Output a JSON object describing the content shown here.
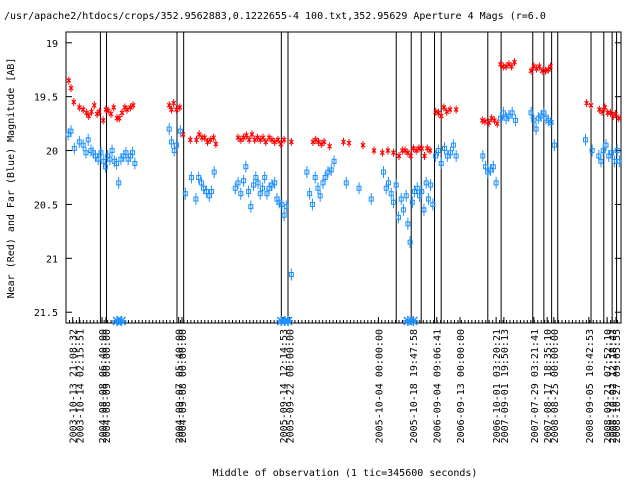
{
  "chart_data": {
    "type": "scatter",
    "title": "/usr/apache2/htdocs/crops/352.9562883,0.1222655-4 100.txt,352.95629    Aperture 4 Mags (r=6.0",
    "xlabel": "Middle of observation (1 tic=345600 seconds)",
    "ylabel": "Near (Red) and Far (Blue) Magnitude [AB]",
    "y_inverted": true,
    "ylim": [
      21.6,
      18.9
    ],
    "yticks": [
      "19",
      "19.5",
      "20",
      "20.5",
      "21",
      "21.5"
    ],
    "xlim": [
      0,
      100
    ],
    "x_tick_labels": [
      {
        "x": 1.2,
        "label": "2003-10-13 21:08:32"
      },
      {
        "x": 2.4,
        "label": "2003-10-14 02:15:51"
      },
      {
        "x": 6.5,
        "label": "2004-08-08 06:40:00"
      },
      {
        "x": 7.2,
        "label": "2004-08-09 00:00:00"
      },
      {
        "x": 20.3,
        "label": "2004-09-07 05:40:00"
      },
      {
        "x": 20.9,
        "label": "2004-09-08 00:00:00"
      },
      {
        "x": 39.1,
        "label": "2005-09-14 12:14:53"
      },
      {
        "x": 40.3,
        "label": "2005-09-22 00:00:00"
      },
      {
        "x": 56.3,
        "label": "2005-10-04 00:00:00"
      },
      {
        "x": 62.5,
        "label": "2005-10-18 19:47:58"
      },
      {
        "x": 66.8,
        "label": "2006-09-04 09:06:41"
      },
      {
        "x": 71.0,
        "label": "2006-09-13 00:00:00"
      },
      {
        "x": 77.5,
        "label": "2006-10-01 03:20:21"
      },
      {
        "x": 78.9,
        "label": "2007-09-01 19:50:13"
      },
      {
        "x": 84.3,
        "label": "2007-07-29 03:21:41"
      },
      {
        "x": 86.7,
        "label": "2007-08-17 18:35:10"
      },
      {
        "x": 87.9,
        "label": "2008-08-25 00:00:00"
      },
      {
        "x": 94.2,
        "label": "2008-09-05 10:42:53"
      },
      {
        "x": 97.5,
        "label": "2008-09-21 07:52:10"
      },
      {
        "x": 98.4,
        "label": "2008-10-02 12:18:43"
      },
      {
        "x": 99.1,
        "label": "2008-10-27 09:05:55"
      }
    ],
    "vertical_lines": [
      6.2,
      7.3,
      20.0,
      21.2,
      38.8,
      40.0,
      59.5,
      62.2,
      64.0,
      66.4,
      67.6,
      76.0,
      78.4,
      84.1,
      86.1,
      87.5,
      88.6,
      94.6,
      96.9,
      98.4,
      99.2
    ],
    "series": [
      {
        "name": "Near (Red)",
        "color": "#ff0000",
        "marker": "x",
        "points": [
          [
            0.5,
            19.35
          ],
          [
            0.9,
            19.42
          ],
          [
            1.4,
            19.55
          ],
          [
            2.4,
            19.6
          ],
          [
            3.1,
            19.62
          ],
          [
            3.7,
            19.65
          ],
          [
            4.1,
            19.68
          ],
          [
            4.6,
            19.64
          ],
          [
            5.1,
            19.58
          ],
          [
            5.6,
            19.66
          ],
          [
            6.0,
            19.64
          ],
          [
            6.7,
            19.72
          ],
          [
            7.2,
            19.62
          ],
          [
            7.6,
            19.63
          ],
          [
            8.1,
            19.66
          ],
          [
            8.6,
            19.6
          ],
          [
            9.2,
            19.7
          ],
          [
            9.6,
            19.7
          ],
          [
            10.1,
            19.65
          ],
          [
            10.6,
            19.6
          ],
          [
            11.0,
            19.62
          ],
          [
            11.6,
            19.6
          ],
          [
            12.1,
            19.58
          ],
          [
            18.6,
            19.58
          ],
          [
            19.0,
            19.62
          ],
          [
            19.4,
            19.56
          ],
          [
            19.9,
            19.62
          ],
          [
            20.5,
            19.6
          ],
          [
            21.1,
            19.85
          ],
          [
            22.4,
            19.9
          ],
          [
            23.5,
            19.9
          ],
          [
            24.0,
            19.85
          ],
          [
            24.5,
            19.88
          ],
          [
            25.0,
            19.88
          ],
          [
            25.5,
            19.92
          ],
          [
            26.0,
            19.9
          ],
          [
            26.6,
            19.88
          ],
          [
            27.0,
            19.94
          ],
          [
            31.0,
            19.88
          ],
          [
            31.5,
            19.9
          ],
          [
            32.0,
            19.88
          ],
          [
            32.5,
            19.86
          ],
          [
            33.0,
            19.9
          ],
          [
            33.5,
            19.85
          ],
          [
            34.0,
            19.9
          ],
          [
            34.5,
            19.88
          ],
          [
            35.0,
            19.9
          ],
          [
            35.5,
            19.88
          ],
          [
            36.0,
            19.92
          ],
          [
            36.6,
            19.88
          ],
          [
            37.1,
            19.9
          ],
          [
            37.6,
            19.92
          ],
          [
            38.2,
            19.9
          ],
          [
            38.7,
            19.94
          ],
          [
            39.3,
            19.9
          ],
          [
            40.6,
            19.92
          ],
          [
            44.5,
            19.92
          ],
          [
            45.0,
            19.9
          ],
          [
            45.5,
            19.92
          ],
          [
            46.0,
            19.94
          ],
          [
            46.5,
            19.92
          ],
          [
            47.5,
            19.96
          ],
          [
            50.0,
            19.92
          ],
          [
            51.0,
            19.93
          ],
          [
            53.5,
            19.95
          ],
          [
            55.5,
            20.0
          ],
          [
            57.0,
            20.02
          ],
          [
            58.0,
            20.0
          ],
          [
            59.0,
            20.02
          ],
          [
            60.0,
            20.05
          ],
          [
            60.6,
            20.0
          ],
          [
            61.1,
            20.0
          ],
          [
            61.6,
            20.02
          ],
          [
            62.1,
            20.05
          ],
          [
            62.6,
            19.98
          ],
          [
            63.1,
            20.0
          ],
          [
            63.6,
            19.98
          ],
          [
            64.1,
            19.98
          ],
          [
            64.6,
            20.05
          ],
          [
            65.1,
            19.98
          ],
          [
            65.6,
            20.0
          ],
          [
            66.6,
            19.64
          ],
          [
            67.1,
            19.65
          ],
          [
            67.6,
            19.68
          ],
          [
            68.1,
            19.6
          ],
          [
            68.6,
            19.64
          ],
          [
            69.2,
            19.62
          ],
          [
            70.3,
            19.62
          ],
          [
            75.0,
            19.72
          ],
          [
            75.5,
            19.73
          ],
          [
            76.2,
            19.74
          ],
          [
            76.7,
            19.7
          ],
          [
            77.2,
            19.72
          ],
          [
            77.7,
            19.75
          ],
          [
            78.3,
            19.2
          ],
          [
            78.8,
            19.22
          ],
          [
            79.3,
            19.22
          ],
          [
            79.8,
            19.2
          ],
          [
            80.3,
            19.22
          ],
          [
            80.8,
            19.18
          ],
          [
            83.8,
            19.26
          ],
          [
            84.3,
            19.22
          ],
          [
            84.8,
            19.24
          ],
          [
            85.3,
            19.22
          ],
          [
            85.8,
            19.26
          ],
          [
            86.4,
            19.26
          ],
          [
            86.9,
            19.25
          ],
          [
            87.3,
            19.22
          ],
          [
            93.8,
            19.56
          ],
          [
            94.6,
            19.58
          ],
          [
            96.1,
            19.62
          ],
          [
            96.6,
            19.64
          ],
          [
            97.1,
            19.6
          ],
          [
            97.6,
            19.65
          ],
          [
            98.1,
            19.65
          ],
          [
            98.6,
            19.68
          ],
          [
            99.0,
            19.66
          ],
          [
            99.6,
            19.7
          ]
        ]
      },
      {
        "name": "Far (Blue)",
        "color": "#1e90ff",
        "marker": "square",
        "points": [
          [
            0.4,
            19.85
          ],
          [
            0.9,
            19.82
          ],
          [
            1.5,
            19.98
          ],
          [
            2.4,
            19.92
          ],
          [
            3.1,
            19.95
          ],
          [
            3.6,
            20.02
          ],
          [
            4.0,
            19.9
          ],
          [
            4.5,
            20.0
          ],
          [
            4.9,
            20.02
          ],
          [
            5.3,
            20.05
          ],
          [
            5.8,
            20.08
          ],
          [
            6.3,
            20.02
          ],
          [
            6.8,
            20.1
          ],
          [
            7.1,
            20.15
          ],
          [
            7.5,
            20.05
          ],
          [
            7.9,
            20.08
          ],
          [
            8.3,
            20.0
          ],
          [
            8.7,
            20.1
          ],
          [
            9.1,
            20.12
          ],
          [
            9.5,
            20.3
          ],
          [
            9.9,
            20.08
          ],
          [
            10.4,
            20.05
          ],
          [
            10.8,
            20.02
          ],
          [
            11.2,
            20.08
          ],
          [
            11.6,
            20.05
          ],
          [
            12.0,
            20.02
          ],
          [
            12.4,
            20.12
          ],
          [
            18.6,
            19.8
          ],
          [
            19.0,
            19.92
          ],
          [
            19.5,
            20.0
          ],
          [
            19.9,
            19.95
          ],
          [
            20.6,
            19.82
          ],
          [
            21.5,
            20.4
          ],
          [
            22.6,
            20.25
          ],
          [
            23.4,
            20.45
          ],
          [
            23.9,
            20.25
          ],
          [
            24.4,
            20.3
          ],
          [
            24.8,
            20.35
          ],
          [
            25.3,
            20.38
          ],
          [
            25.8,
            20.42
          ],
          [
            26.2,
            20.38
          ],
          [
            26.7,
            20.2
          ],
          [
            30.5,
            20.35
          ],
          [
            31.0,
            20.3
          ],
          [
            31.5,
            20.4
          ],
          [
            32.0,
            20.28
          ],
          [
            32.4,
            20.15
          ],
          [
            32.9,
            20.38
          ],
          [
            33.3,
            20.52
          ],
          [
            33.8,
            20.32
          ],
          [
            34.2,
            20.25
          ],
          [
            34.6,
            20.3
          ],
          [
            35.0,
            20.4
          ],
          [
            35.4,
            20.35
          ],
          [
            35.8,
            20.25
          ],
          [
            36.2,
            20.4
          ],
          [
            36.6,
            20.35
          ],
          [
            37.1,
            20.32
          ],
          [
            37.6,
            20.3
          ],
          [
            38.0,
            20.45
          ],
          [
            38.4,
            20.48
          ],
          [
            38.9,
            20.5
          ],
          [
            39.3,
            20.6
          ],
          [
            39.7,
            20.52
          ],
          [
            40.6,
            21.15
          ],
          [
            43.4,
            20.2
          ],
          [
            43.9,
            20.4
          ],
          [
            44.4,
            20.5
          ],
          [
            44.9,
            20.25
          ],
          [
            45.4,
            20.35
          ],
          [
            45.8,
            20.42
          ],
          [
            46.3,
            20.3
          ],
          [
            46.7,
            20.25
          ],
          [
            47.2,
            20.2
          ],
          [
            47.8,
            20.18
          ],
          [
            48.3,
            20.1
          ],
          [
            50.5,
            20.3
          ],
          [
            52.8,
            20.35
          ],
          [
            55.0,
            20.45
          ],
          [
            57.2,
            20.2
          ],
          [
            57.7,
            20.35
          ],
          [
            58.1,
            20.3
          ],
          [
            58.6,
            20.4
          ],
          [
            59.0,
            20.48
          ],
          [
            59.5,
            20.32
          ],
          [
            59.9,
            20.62
          ],
          [
            60.4,
            20.45
          ],
          [
            60.8,
            20.55
          ],
          [
            61.3,
            20.42
          ],
          [
            61.6,
            20.68
          ],
          [
            62.0,
            20.85
          ],
          [
            62.4,
            20.48
          ],
          [
            62.8,
            20.38
          ],
          [
            63.3,
            20.35
          ],
          [
            63.7,
            20.42
          ],
          [
            64.1,
            20.38
          ],
          [
            64.5,
            20.55
          ],
          [
            64.9,
            20.3
          ],
          [
            65.3,
            20.45
          ],
          [
            65.7,
            20.32
          ],
          [
            66.1,
            20.5
          ],
          [
            66.6,
            20.05
          ],
          [
            67.1,
            20.0
          ],
          [
            67.6,
            20.12
          ],
          [
            68.2,
            19.98
          ],
          [
            68.7,
            20.05
          ],
          [
            69.3,
            20.02
          ],
          [
            69.8,
            19.95
          ],
          [
            70.3,
            20.05
          ],
          [
            75.1,
            20.05
          ],
          [
            75.6,
            20.15
          ],
          [
            76.0,
            20.2
          ],
          [
            76.5,
            20.18
          ],
          [
            77.0,
            20.15
          ],
          [
            77.5,
            20.3
          ],
          [
            78.3,
            19.7
          ],
          [
            78.8,
            19.65
          ],
          [
            79.3,
            19.7
          ],
          [
            79.8,
            19.68
          ],
          [
            80.4,
            19.65
          ],
          [
            81.0,
            19.72
          ],
          [
            83.8,
            19.65
          ],
          [
            84.3,
            19.72
          ],
          [
            84.7,
            19.8
          ],
          [
            85.1,
            19.7
          ],
          [
            85.6,
            19.68
          ],
          [
            86.1,
            19.65
          ],
          [
            86.5,
            19.7
          ],
          [
            86.9,
            19.72
          ],
          [
            87.4,
            19.74
          ],
          [
            88.0,
            19.95
          ],
          [
            93.6,
            19.9
          ],
          [
            94.8,
            20.0
          ],
          [
            96.0,
            20.05
          ],
          [
            96.4,
            20.1
          ],
          [
            96.8,
            20.0
          ],
          [
            97.3,
            19.95
          ],
          [
            97.8,
            20.05
          ],
          [
            98.3,
            20.02
          ],
          [
            98.8,
            20.1
          ],
          [
            99.3,
            20.0
          ],
          [
            99.7,
            20.1
          ]
        ]
      }
    ],
    "offscale_markers": [
      {
        "x": 9.2,
        "color": "#1e90ff"
      },
      {
        "x": 10.0,
        "color": "#1e90ff"
      },
      {
        "x": 38.8,
        "color": "#1e90ff"
      },
      {
        "x": 39.4,
        "color": "#1e90ff"
      },
      {
        "x": 40.0,
        "color": "#1e90ff"
      },
      {
        "x": 61.6,
        "color": "#1e90ff"
      },
      {
        "x": 62.6,
        "color": "#1e90ff"
      }
    ]
  }
}
